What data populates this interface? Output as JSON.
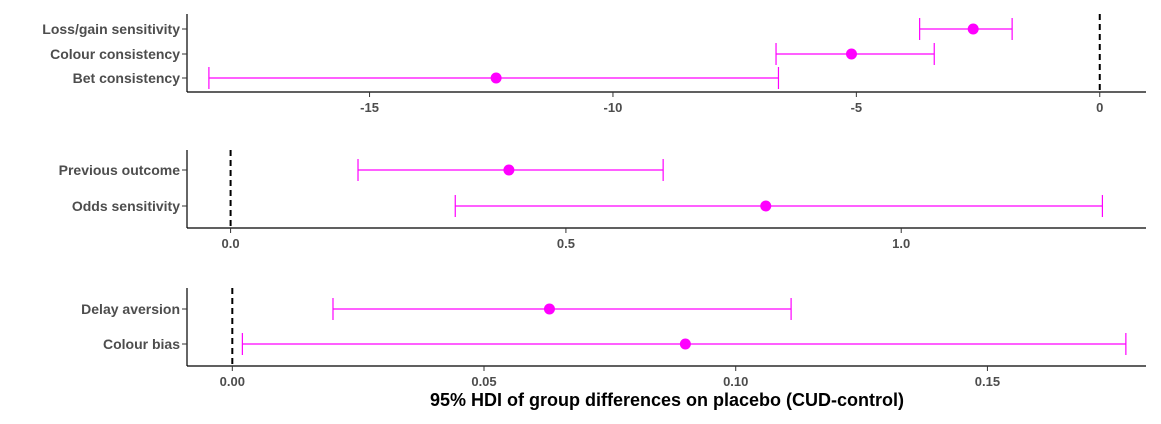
{
  "colors": {
    "marker": "#ff00ff",
    "axis": "#000000",
    "text": "#4d4d4d"
  },
  "x_axis_title": "95% HDI of group differences on placebo (CUD-control)",
  "chart_data": [
    {
      "type": "errorbar",
      "xlim": [
        -18.75,
        0.95
      ],
      "ticks": [
        -15,
        -10,
        -5,
        0
      ],
      "tick_labels": [
        "-15",
        "-10",
        "-5",
        "0"
      ],
      "reference_x": 0,
      "rows": [
        {
          "label": "Loss/gain sensitivity",
          "lower": -3.7,
          "estimate": -2.6,
          "upper": -1.8
        },
        {
          "label": "Colour consistency",
          "lower": -6.65,
          "estimate": -5.1,
          "upper": -3.4
        },
        {
          "label": "Bet consistency",
          "lower": -18.3,
          "estimate": -12.4,
          "upper": -6.6
        }
      ]
    },
    {
      "type": "errorbar",
      "xlim": [
        -0.065,
        1.365
      ],
      "ticks": [
        0.0,
        0.5,
        1.0
      ],
      "tick_labels": [
        "0.0",
        "0.5",
        "1.0"
      ],
      "reference_x": 0,
      "rows": [
        {
          "label": "Previous outcome",
          "lower": 0.19,
          "estimate": 0.415,
          "upper": 0.645
        },
        {
          "label": "Odds sensitivity",
          "lower": 0.335,
          "estimate": 0.798,
          "upper": 1.3
        }
      ]
    },
    {
      "type": "errorbar",
      "xlim": [
        -0.009,
        0.1815
      ],
      "ticks": [
        0.0,
        0.05,
        0.1,
        0.15
      ],
      "tick_labels": [
        "0.00",
        "0.05",
        "0.10",
        "0.15"
      ],
      "reference_x": 0,
      "rows": [
        {
          "label": "Delay aversion",
          "lower": 0.02,
          "estimate": 0.063,
          "upper": 0.111
        },
        {
          "label": "Colour bias",
          "lower": 0.002,
          "estimate": 0.09,
          "upper": 0.1775
        }
      ]
    }
  ]
}
